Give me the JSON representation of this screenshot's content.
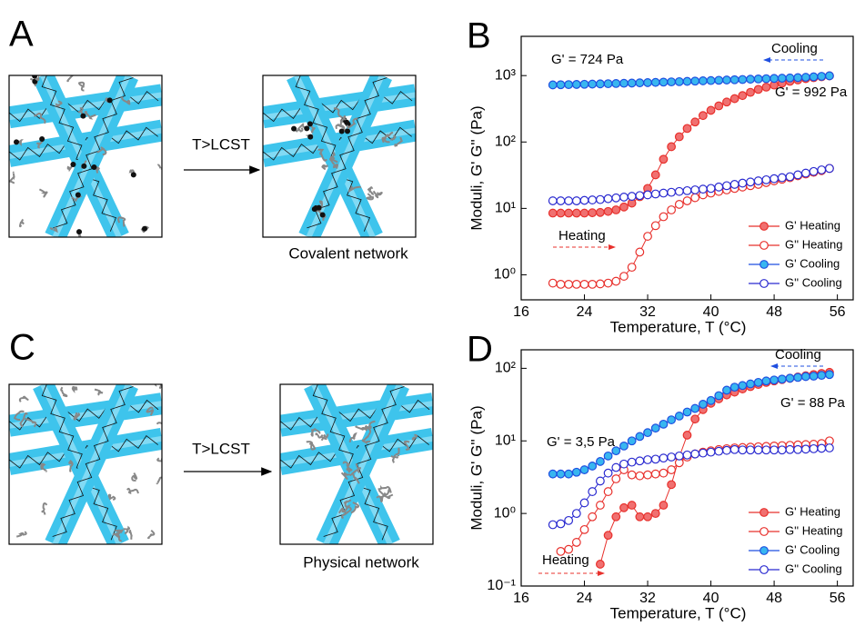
{
  "panels": [
    {
      "label": "A",
      "arrow_label": "T>LCST",
      "caption": "Covalent network"
    },
    {
      "label": "C",
      "arrow_label": "T>LCST",
      "caption": "Physical network"
    }
  ],
  "chart_data": [
    {
      "type": "scatter",
      "title": "B",
      "x_label": "Temperature, T (°C)",
      "y_label": "Moduli, G' G'' (Pa)",
      "log_y": true,
      "legend": "lower right",
      "xlim": [
        16,
        58
      ],
      "xticks": [
        16,
        24,
        32,
        40,
        48,
        56
      ],
      "ylim": [
        0.42,
        3900
      ],
      "yticks": [
        {
          "value": 1,
          "label": "10⁰"
        },
        {
          "value": 10,
          "label": "10¹"
        },
        {
          "value": 100,
          "label": "10²"
        },
        {
          "value": 1000,
          "label": "10³"
        }
      ],
      "x": [
        20,
        21,
        22,
        23,
        24,
        25,
        26,
        27,
        28,
        29,
        30,
        31,
        32,
        33,
        34,
        35,
        36,
        37,
        38,
        39,
        40,
        41,
        42,
        43,
        44,
        45,
        46,
        47,
        48,
        49,
        50,
        51,
        52,
        53,
        54,
        55
      ],
      "series": [
        {
          "name": "G'  Heating",
          "color": "#e8302c",
          "marker_fill": "#f07070",
          "values": [
            8.5,
            8.5,
            8.5,
            8.5,
            8.5,
            8.6,
            8.7,
            9,
            9.5,
            10.5,
            12,
            15,
            20,
            32,
            55,
            85,
            120,
            160,
            200,
            250,
            300,
            350,
            400,
            450,
            500,
            560,
            620,
            670,
            720,
            770,
            820,
            860,
            900,
            930,
            960,
            992
          ]
        },
        {
          "name": "G'' Heating",
          "color": "#e8302c",
          "marker_fill": "#ffffff",
          "values": [
            0.75,
            0.72,
            0.72,
            0.72,
            0.72,
            0.72,
            0.73,
            0.75,
            0.8,
            0.95,
            1.3,
            2.2,
            3.8,
            5.5,
            7.5,
            9.5,
            11.5,
            13,
            14.5,
            16,
            17,
            18,
            19,
            20,
            21,
            22,
            23,
            24.5,
            26,
            27.5,
            29,
            31,
            33,
            35,
            37,
            40
          ]
        },
        {
          "name": "G'  Cooling",
          "color": "#1f4fe0",
          "marker_fill": "#38b6f0",
          "values": [
            724,
            728,
            732,
            736,
            740,
            745,
            750,
            755,
            760,
            766,
            772,
            778,
            784,
            790,
            797,
            804,
            811,
            818,
            826,
            834,
            842,
            850,
            858,
            866,
            874,
            882,
            890,
            898,
            906,
            914,
            922,
            932,
            944,
            958,
            975,
            992
          ]
        },
        {
          "name": "G'' Cooling",
          "color": "#2a2ad0",
          "marker_fill": "#ffffff",
          "values": [
            13,
            13,
            13,
            13,
            13.2,
            13.4,
            13.6,
            14,
            14.4,
            14.8,
            15.2,
            15.6,
            16,
            16.5,
            17,
            17.5,
            18,
            18.5,
            19,
            19.5,
            20,
            21,
            22,
            23,
            24,
            25,
            26,
            27,
            28,
            29,
            30,
            32,
            34,
            36,
            38,
            40
          ]
        }
      ],
      "annotations": [
        {
          "text": "G' = 724 Pa",
          "color": "#1f4fe0"
        },
        {
          "text": "G' = 992 Pa",
          "color": "#e8302c"
        },
        {
          "text": "Cooling",
          "color": "#1f4fe0"
        },
        {
          "text": "Heating",
          "color": "#e8302c"
        }
      ]
    },
    {
      "type": "scatter",
      "title": "D",
      "x_label": "Temperature, T (°C)",
      "y_label": "Moduli, G' G'' (Pa)",
      "log_y": true,
      "legend": "lower right",
      "xlim": [
        16,
        58
      ],
      "xticks": [
        16,
        24,
        32,
        40,
        48,
        56
      ],
      "ylim": [
        0.1,
        180
      ],
      "yticks": [
        {
          "value": 0.1,
          "label": "10⁻¹"
        },
        {
          "value": 1,
          "label": "10⁰"
        },
        {
          "value": 10,
          "label": "10¹"
        },
        {
          "value": 100,
          "label": "10²"
        }
      ],
      "x": [
        20,
        21,
        22,
        23,
        24,
        25,
        26,
        27,
        28,
        29,
        30,
        31,
        32,
        33,
        34,
        35,
        36,
        37,
        38,
        39,
        40,
        41,
        42,
        43,
        44,
        45,
        46,
        47,
        48,
        49,
        50,
        51,
        52,
        53,
        54,
        55
      ],
      "series": [
        {
          "name": "G'  Heating",
          "color": "#e8302c",
          "marker_fill": "#f07070",
          "values": [
            null,
            null,
            null,
            null,
            null,
            null,
            0.2,
            0.5,
            0.9,
            1.2,
            1.3,
            0.9,
            0.9,
            1.0,
            1.3,
            2.5,
            6,
            12,
            20,
            27,
            33,
            38,
            43,
            47,
            52,
            56,
            60,
            64,
            67,
            70,
            73,
            76,
            79,
            82,
            85,
            88
          ]
        },
        {
          "name": "G'' Heating",
          "color": "#e8302c",
          "marker_fill": "#ffffff",
          "values": [
            null,
            0.3,
            0.32,
            0.4,
            0.6,
            0.9,
            1.3,
            2,
            3,
            4,
            3.4,
            3.3,
            3.4,
            3.5,
            3.6,
            4,
            5,
            6,
            6.6,
            7,
            7.3,
            7.6,
            7.8,
            8,
            8.1,
            8.2,
            8.3,
            8.4,
            8.5,
            8.6,
            8.7,
            8.8,
            8.9,
            9,
            9.2,
            10
          ]
        },
        {
          "name": "G' Cooling",
          "color": "#1f4fe0",
          "marker_fill": "#38b6f0",
          "values": [
            3.5,
            3.5,
            3.5,
            3.7,
            4,
            4.5,
            5.2,
            6.2,
            7.3,
            8.5,
            10,
            11.5,
            13,
            15,
            17,
            19.5,
            22,
            25,
            28,
            32,
            36,
            42,
            50,
            55,
            58,
            61,
            64,
            67,
            69,
            71,
            73,
            75,
            77,
            78,
            80,
            82
          ]
        },
        {
          "name": "G'' Cooling",
          "color": "#2a2ad0",
          "marker_fill": "#ffffff",
          "values": [
            0.7,
            0.72,
            0.8,
            1.0,
            1.4,
            2,
            2.8,
            3.6,
            4.3,
            4.8,
            5.1,
            5.3,
            5.5,
            5.6,
            5.8,
            6,
            6.2,
            6.4,
            6.6,
            6.8,
            7,
            7.2,
            7.4,
            7.6,
            7.5,
            7.5,
            7.5,
            7.5,
            7.5,
            7.5,
            7.6,
            7.6,
            7.7,
            7.8,
            7.9,
            8
          ]
        }
      ],
      "annotations": [
        {
          "text": "G' = 3,5 Pa",
          "color": "#1f4fe0"
        },
        {
          "text": "G' = 88 Pa",
          "color": "#e8302c"
        },
        {
          "text": "Cooling",
          "color": "#1f4fe0"
        },
        {
          "text": "Heating",
          "color": "#e8302c"
        }
      ]
    }
  ]
}
